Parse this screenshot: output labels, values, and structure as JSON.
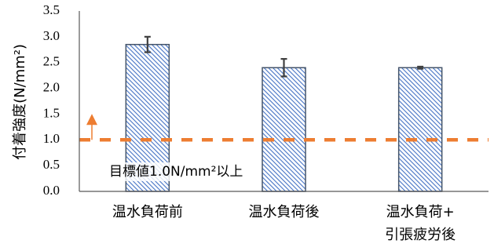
{
  "chart_data": {
    "type": "bar",
    "categories": [
      [
        "温水負荷前"
      ],
      [
        "温水負荷後"
      ],
      [
        "温水負荷+",
        "引張疲労後"
      ]
    ],
    "values": [
      2.85,
      2.4,
      2.4
    ],
    "error": [
      0.15,
      0.17,
      0.02
    ],
    "ylabel": "付着強度(N/mm²)",
    "ylim": [
      0,
      3.5
    ],
    "yticks": [
      "0.0",
      "0.5",
      "1.0",
      "1.5",
      "2.0",
      "2.5",
      "3.0",
      "3.5"
    ],
    "threshold": {
      "value": 1.0,
      "label": "目標値1.0N/mm²以上"
    },
    "grid": false,
    "colors": {
      "bar_stroke": "#44546a",
      "bar_hatch": "#4472c4",
      "threshold": "#ed7d31",
      "error_bar": "#404040",
      "axis": "#595959"
    }
  }
}
